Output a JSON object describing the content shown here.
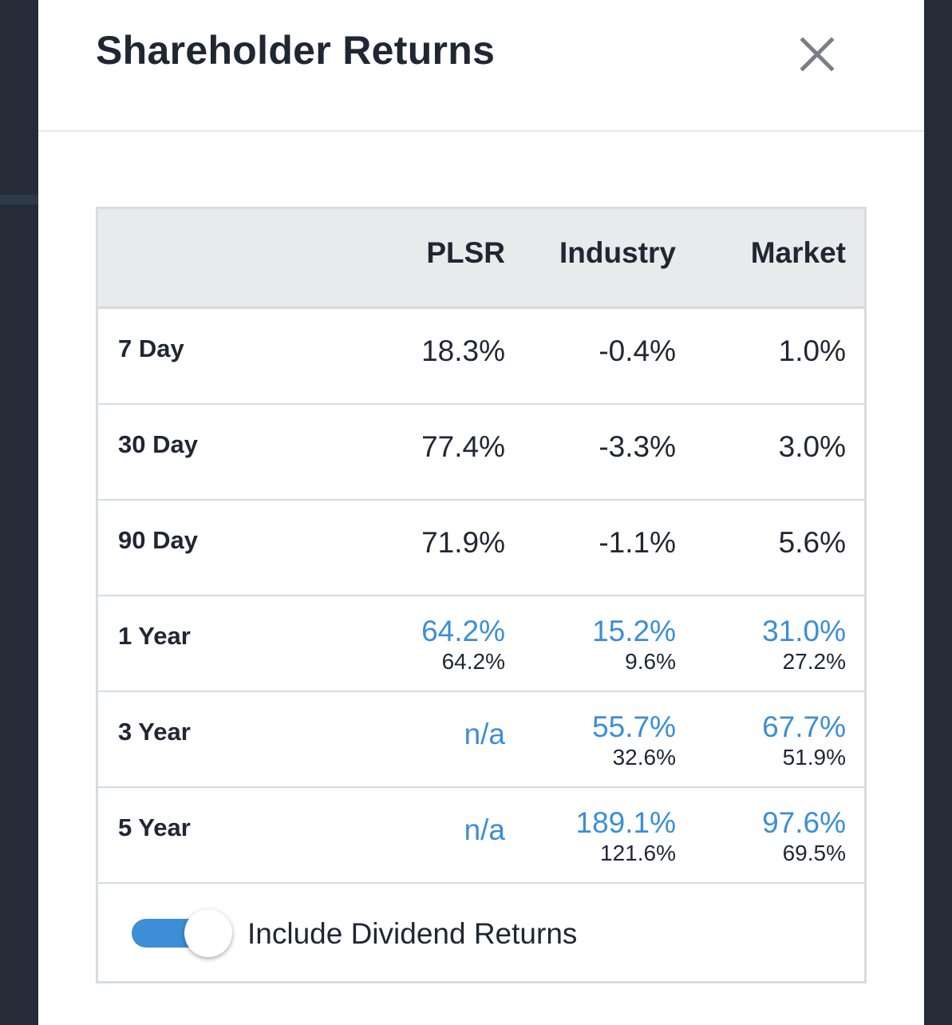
{
  "modal": {
    "title": "Shareholder Returns",
    "close_icon": "close-icon"
  },
  "table": {
    "columns": [
      "PLSR",
      "Industry",
      "Market"
    ],
    "rows": [
      {
        "label": "7 Day",
        "plsr": "18.3%",
        "industry": "-0.4%",
        "market": "1.0%"
      },
      {
        "label": "30 Day",
        "plsr": "77.4%",
        "industry": "-3.3%",
        "market": "3.0%"
      },
      {
        "label": "90 Day",
        "plsr": "71.9%",
        "industry": "-1.1%",
        "market": "5.6%"
      },
      {
        "label": "1 Year",
        "plsr": "64.2%",
        "plsr_sub": "64.2%",
        "industry": "15.2%",
        "industry_sub": "9.6%",
        "market": "31.0%",
        "market_sub": "27.2%"
      },
      {
        "label": "3 Year",
        "plsr": "n/a",
        "industry": "55.7%",
        "industry_sub": "32.6%",
        "market": "67.7%",
        "market_sub": "51.9%"
      },
      {
        "label": "5 Year",
        "plsr": "n/a",
        "industry": "189.1%",
        "industry_sub": "121.6%",
        "market": "97.6%",
        "market_sub": "69.5%"
      }
    ]
  },
  "toggle": {
    "label": "Include Dividend Returns",
    "enabled": true
  },
  "colors": {
    "accent": "#3c8ed6",
    "text": "#1f2733",
    "header_bg": "#e9eaeb",
    "backdrop": "#252c38"
  }
}
